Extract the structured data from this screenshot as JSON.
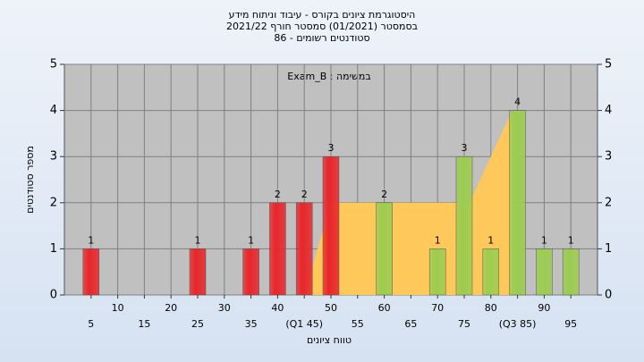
{
  "chart_data": {
    "type": "bar",
    "title": [
      "היסטוגרמת ציונים בקורס - עיבוד וניתוח מידע",
      "בסמסטר  (01/2021)  סמסטר חורף 2021/22",
      "סטודנטים רשומים - 86"
    ],
    "annotation": "Exam_B : במשימה",
    "xlabel": "טווח ציונים",
    "ylabel": "מספר סטודנטים",
    "xlim": [
      0,
      100
    ],
    "ylim": [
      0,
      5
    ],
    "yticks": [
      0,
      1,
      2,
      3,
      4,
      5
    ],
    "y2lim": [
      0,
      5
    ],
    "y2ticks": [
      0,
      1,
      2,
      3,
      4,
      5
    ],
    "xticks": [
      5,
      10,
      15,
      20,
      25,
      30,
      35,
      40,
      {
        "value": 45,
        "label": "(Q1 45)"
      },
      50,
      55,
      60,
      65,
      70,
      75,
      80,
      {
        "value": 85,
        "label": "(Q3 85)"
      },
      90,
      95
    ],
    "grid": true,
    "area": {
      "color": "#ffc85a",
      "x": [
        45,
        50,
        76,
        84
      ],
      "values": [
        0,
        2,
        2,
        4
      ]
    },
    "series": [
      {
        "color": "#e8262a",
        "x": [
          5,
          25,
          35,
          40,
          45,
          50
        ],
        "values": [
          1,
          1,
          1,
          2,
          2,
          3
        ]
      },
      {
        "color": "#9ccc50",
        "x": [
          60,
          70,
          75,
          80,
          85,
          90,
          95
        ],
        "values": [
          2,
          1,
          3,
          1,
          4,
          1,
          1
        ]
      }
    ]
  }
}
